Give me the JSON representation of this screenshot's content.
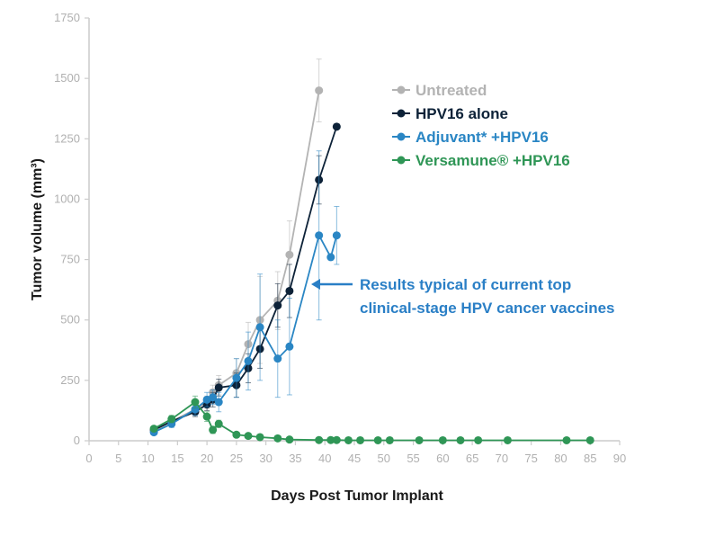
{
  "chart_data": {
    "type": "line",
    "title": "",
    "xlabel": "Days Post Tumor Implant",
    "ylabel": "Tumor volume (mm³)",
    "xlim": [
      0,
      90
    ],
    "ylim": [
      0,
      1750
    ],
    "xticks": [
      0,
      5,
      10,
      15,
      20,
      25,
      30,
      35,
      40,
      45,
      50,
      55,
      60,
      65,
      70,
      75,
      80,
      85,
      90
    ],
    "yticks": [
      0,
      250,
      500,
      750,
      1000,
      1250,
      1500,
      1750
    ],
    "grid": false,
    "legend_position": "top-right",
    "series": [
      {
        "name": "Untreated",
        "color": "#b3b3b3",
        "x": [
          11,
          14,
          18,
          20,
          21,
          22,
          25,
          27,
          29,
          32,
          34,
          39
        ],
        "y": [
          40,
          80,
          130,
          160,
          200,
          230,
          280,
          400,
          500,
          580,
          770,
          1450
        ],
        "err": [
          10,
          15,
          20,
          25,
          30,
          40,
          60,
          90,
          180,
          120,
          140,
          130
        ]
      },
      {
        "name": "HPV16 alone",
        "color": "#0d2238",
        "x": [
          11,
          14,
          18,
          20,
          21,
          22,
          25,
          27,
          29,
          32,
          34,
          39,
          42
        ],
        "y": [
          45,
          80,
          120,
          150,
          170,
          220,
          230,
          300,
          380,
          560,
          620,
          1080,
          1300
        ],
        "err": [
          10,
          15,
          20,
          25,
          30,
          35,
          50,
          60,
          80,
          90,
          110,
          100,
          0
        ]
      },
      {
        "name": "Adjuvant* +HPV16",
        "color": "#2a86c4",
        "x": [
          11,
          14,
          18,
          20,
          21,
          22,
          25,
          27,
          29,
          32,
          34,
          39,
          41,
          42
        ],
        "y": [
          35,
          70,
          130,
          170,
          180,
          160,
          260,
          330,
          470,
          340,
          390,
          850,
          760,
          850
        ],
        "err": [
          10,
          15,
          25,
          30,
          30,
          40,
          80,
          120,
          220,
          160,
          200,
          350,
          0,
          120
        ]
      },
      {
        "name": "Versamune® +HPV16",
        "color": "#2f9656",
        "x": [
          11,
          14,
          18,
          20,
          21,
          22,
          25,
          27,
          29,
          32,
          34,
          39,
          41,
          42,
          44,
          46,
          49,
          51,
          56,
          60,
          63,
          66,
          71,
          81,
          85
        ],
        "y": [
          50,
          90,
          160,
          100,
          45,
          70,
          25,
          20,
          15,
          10,
          5,
          3,
          3,
          3,
          2,
          2,
          2,
          2,
          2,
          2,
          2,
          2,
          2,
          2,
          2
        ],
        "err": [
          10,
          15,
          25,
          20,
          15,
          15,
          10,
          8,
          6,
          5,
          4,
          3,
          3,
          3,
          2,
          2,
          2,
          2,
          2,
          2,
          2,
          2,
          2,
          2,
          2
        ]
      }
    ],
    "annotation": {
      "lines": [
        "Results typical of current top",
        "clinical-stage HPV cancer vaccines"
      ],
      "color": "#2a7fc6",
      "arrow_to": [
        34.5,
        650
      ]
    }
  }
}
